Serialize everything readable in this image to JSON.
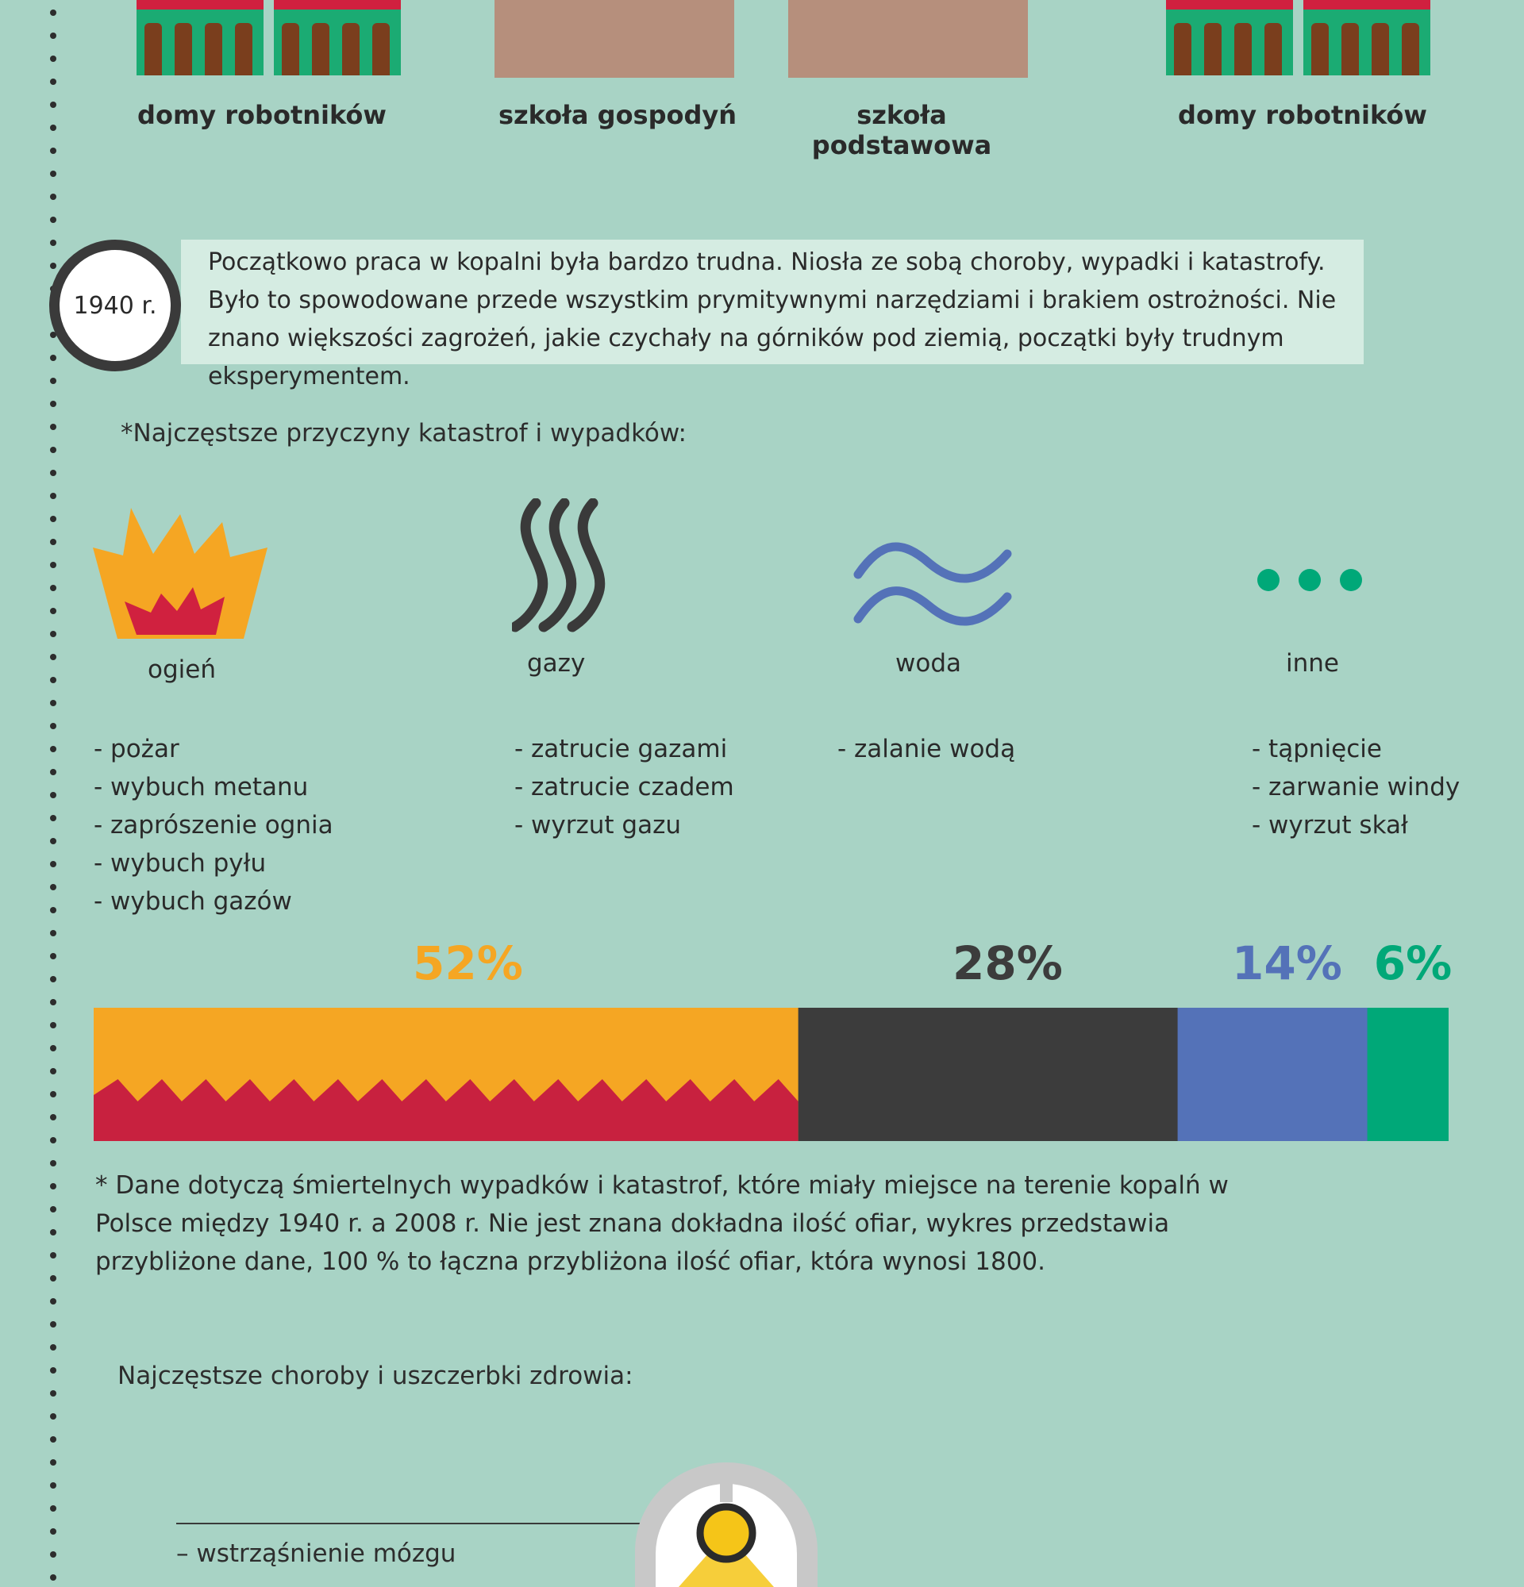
{
  "buildings": [
    {
      "label": "domy robotników",
      "type": "houses"
    },
    {
      "label": "szkoła gospodyń",
      "type": "school"
    },
    {
      "label": "szkoła podstawowa",
      "type": "school"
    },
    {
      "label": "domy robotników",
      "type": "houses"
    }
  ],
  "timeline": {
    "year": "1940 r.",
    "text": "Początkowo praca w kopalni była bardzo trudna. Niosła ze sobą choroby, wypadki i katastrofy. Było to spowodowane przede wszystkim prymitywnymi narzędziami i brakiem ostrożności. Nie znano większości zagrożeń, jakie czychały na górników pod ziemią, początki były trudnym eksperymentem."
  },
  "causes_heading": "*Najczęstsze przyczyny katastrof i wypadków:",
  "categories": [
    {
      "label": "ogień",
      "icon": "fire-icon",
      "color": "#f5a623",
      "items": [
        "- pożar",
        "- wybuch metanu",
        "- zaprószenie ognia",
        "- wybuch pyłu",
        "- wybuch gazów"
      ]
    },
    {
      "label": "gazy",
      "icon": "gas-icon",
      "color": "#3a3a3a",
      "items": [
        "- zatrucie gazami",
        "- zatrucie czadem",
        "- wyrzut gazu"
      ]
    },
    {
      "label": "woda",
      "icon": "water-icon",
      "color": "#5472b8",
      "items": [
        "- zalanie wodą"
      ]
    },
    {
      "label": "inne",
      "icon": "ellipsis-icon",
      "color": "#00a878",
      "items": [
        "- tąpnięcie",
        "- zarwanie windy",
        "- wyrzut skał"
      ]
    }
  ],
  "chart_data": {
    "type": "bar",
    "stacked": true,
    "categories": [
      "ogień",
      "gazy",
      "woda",
      "inne"
    ],
    "values": [
      52,
      28,
      14,
      6
    ],
    "labels": [
      "52%",
      "28%",
      "14%",
      "6%"
    ],
    "colors": [
      "#f5a623",
      "#3c3c3c",
      "#5472b8",
      "#00a878"
    ],
    "total": 1800
  },
  "footnote": "* Dane dotyczą śmiertelnych wypadków i katastrof, które miały miejsce na terenie kopalń w Polsce między 1940 r. a 2008 r. Nie jest znana dokładna ilość ofiar, wykres przedstawia przybliżone dane, 100 % to łączna przybliżona ilość ofiar, która wynosi 1800.",
  "diseases_heading": "Najczęstsze choroby i uszczerbki zdrowia:",
  "diseases": [
    "– wstrząśnienie mózgu"
  ],
  "icons": {
    "helmet": "miner-helmet-icon"
  }
}
